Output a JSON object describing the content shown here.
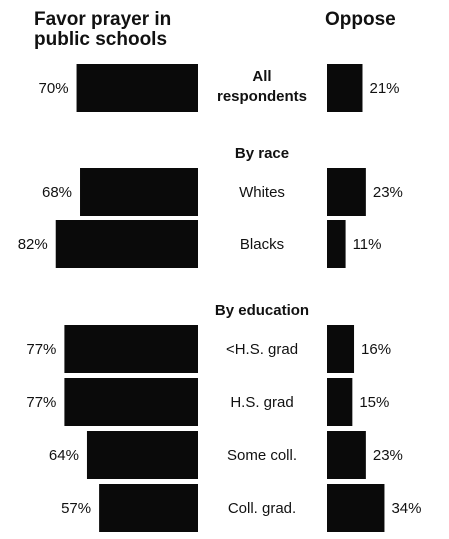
{
  "chart_data": {
    "type": "bar",
    "series": [
      {
        "name": "Favor prayer in public schools",
        "color": "#0a0a0a"
      },
      {
        "name": "Oppose",
        "color": "#0a0a0a"
      }
    ],
    "sections": [
      {
        "title": "",
        "rows": [
          {
            "label": "All respondents",
            "bold": true,
            "favor": 70,
            "favor_label": "70%",
            "oppose": 21,
            "oppose_label": "21%"
          }
        ]
      },
      {
        "title": "By race",
        "rows": [
          {
            "label": "Whites",
            "bold": false,
            "favor": 68,
            "favor_label": "68%",
            "oppose": 23,
            "oppose_label": "23%"
          },
          {
            "label": "Blacks",
            "bold": false,
            "favor": 82,
            "favor_label": "82%",
            "oppose": 11,
            "oppose_label": "11%"
          }
        ]
      },
      {
        "title": "By education",
        "rows": [
          {
            "label": "<H.S. grad",
            "bold": false,
            "favor": 77,
            "favor_label": "77%",
            "oppose": 16,
            "oppose_label": "16%"
          },
          {
            "label": "H.S. grad",
            "bold": false,
            "favor": 77,
            "favor_label": "77%",
            "oppose": 15,
            "oppose_label": "15%"
          },
          {
            "label": "Some coll.",
            "bold": false,
            "favor": 64,
            "favor_label": "64%",
            "oppose": 23,
            "oppose_label": "23%"
          },
          {
            "label": "Coll. grad.",
            "bold": false,
            "favor": 57,
            "favor_label": "57%",
            "oppose": 34,
            "oppose_label": "34%"
          }
        ]
      }
    ],
    "grid": false,
    "legend": "none"
  }
}
